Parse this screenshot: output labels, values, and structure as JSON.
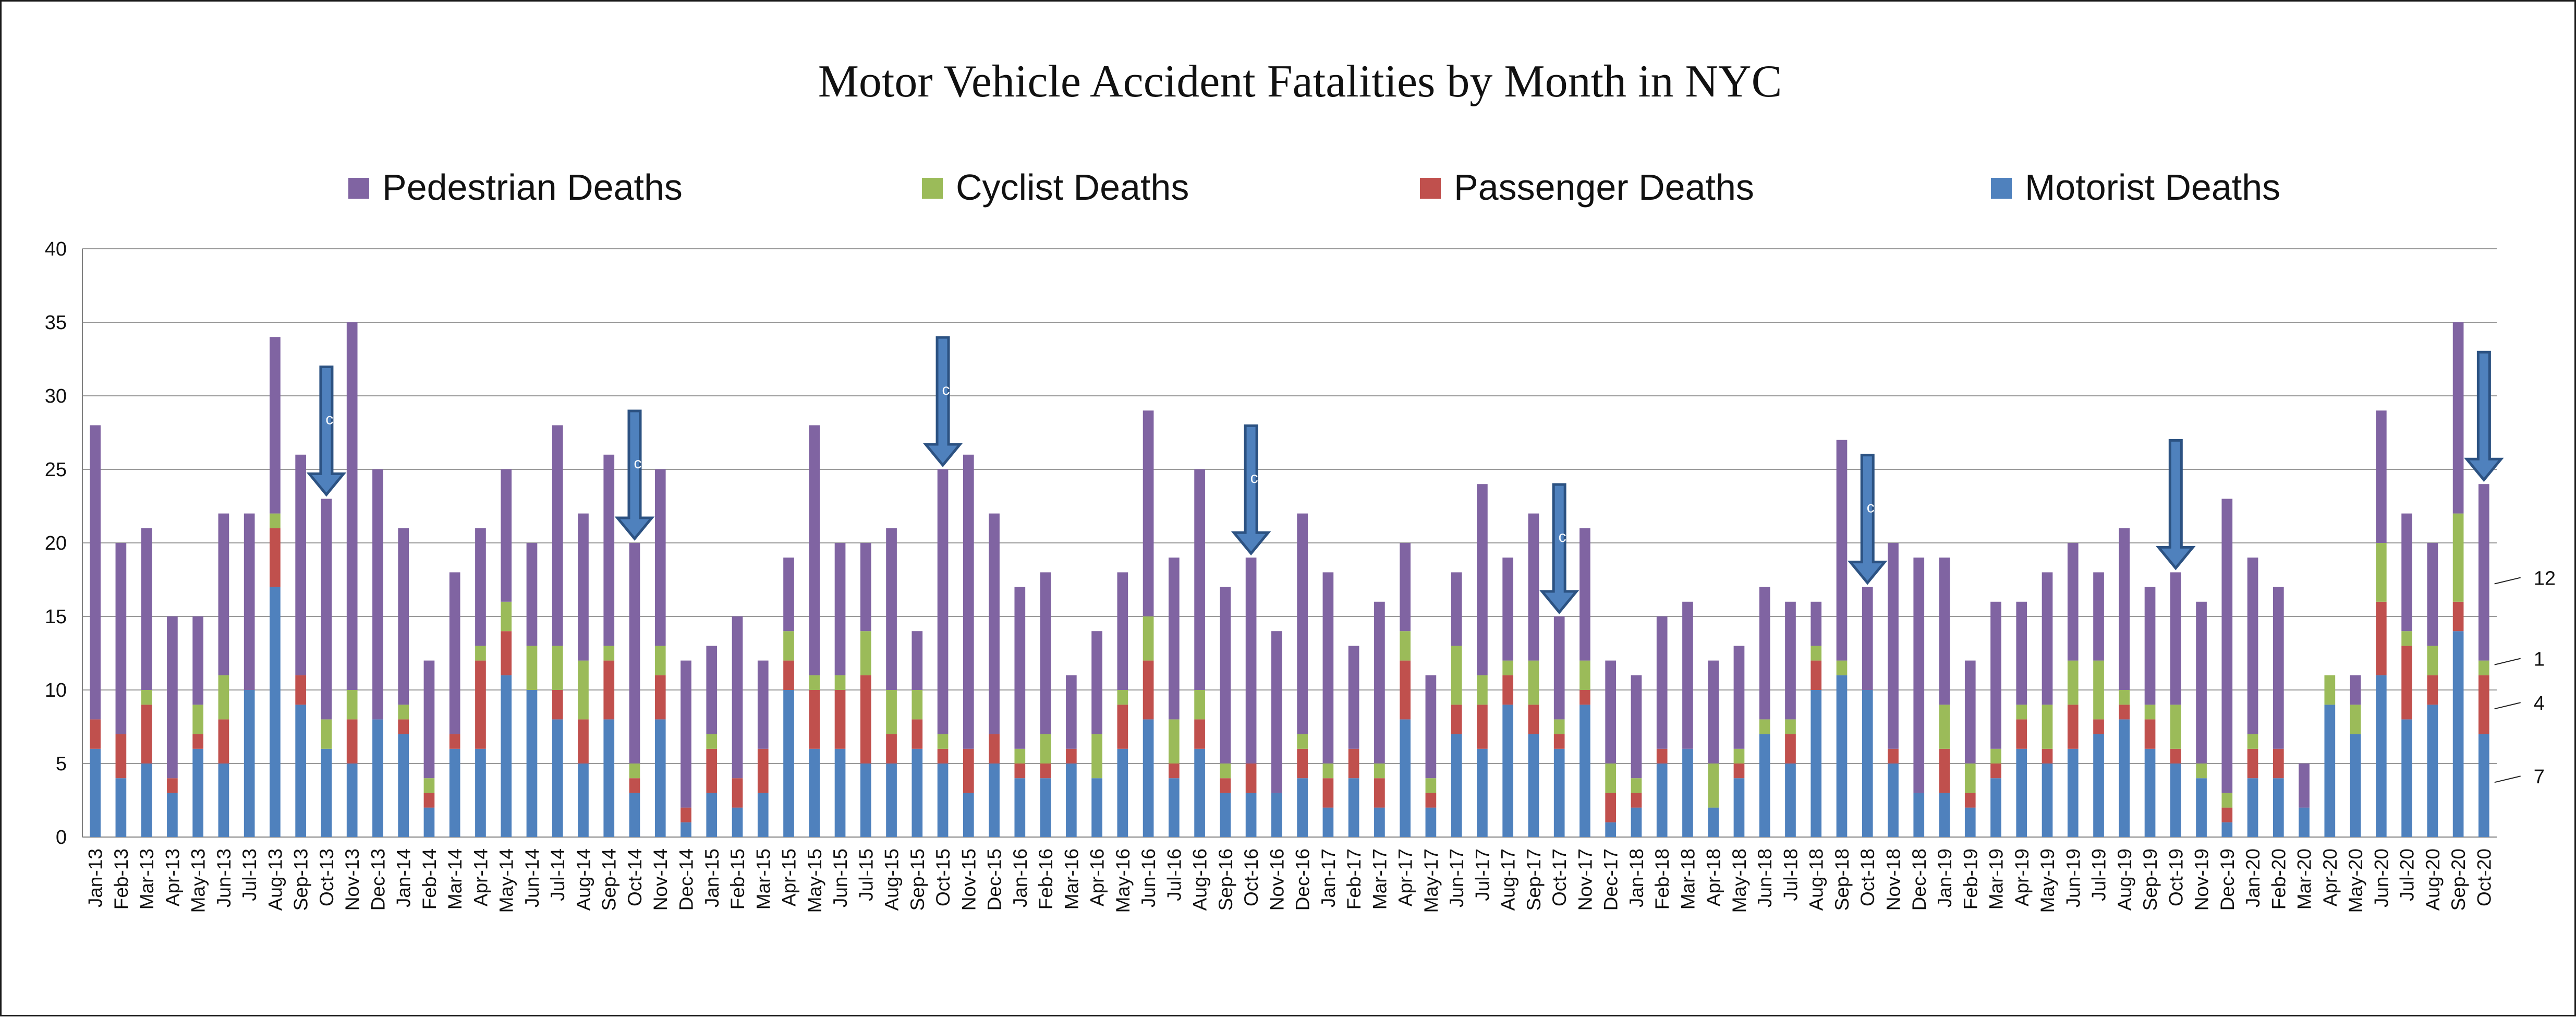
{
  "chart_data": {
    "type": "bar",
    "stacked": true,
    "title": "Motor Vehicle Accident Fatalities by Month in NYC",
    "legend_position": "top",
    "grid": true,
    "ylim": [
      0,
      40
    ],
    "yticks": [
      0,
      5,
      10,
      15,
      20,
      25,
      30,
      35,
      40
    ],
    "categories": [
      "Jan-13",
      "Feb-13",
      "Mar-13",
      "Apr-13",
      "May-13",
      "Jun-13",
      "Jul-13",
      "Aug-13",
      "Sep-13",
      "Oct-13",
      "Nov-13",
      "Dec-13",
      "Jan-14",
      "Feb-14",
      "Mar-14",
      "Apr-14",
      "May-14",
      "Jun-14",
      "Jul-14",
      "Aug-14",
      "Sep-14",
      "Oct-14",
      "Nov-14",
      "Dec-14",
      "Jan-15",
      "Feb-15",
      "Mar-15",
      "Apr-15",
      "May-15",
      "Jun-15",
      "Jul-15",
      "Aug-15",
      "Sep-15",
      "Oct-15",
      "Nov-15",
      "Dec-15",
      "Jan-16",
      "Feb-16",
      "Mar-16",
      "Apr-16",
      "May-16",
      "Jun-16",
      "Jul-16",
      "Aug-16",
      "Sep-16",
      "Oct-16",
      "Nov-16",
      "Dec-16",
      "Jan-17",
      "Feb-17",
      "Mar-17",
      "Apr-17",
      "May-17",
      "Jun-17",
      "Jul-17",
      "Aug-17",
      "Sep-17",
      "Oct-17",
      "Nov-17",
      "Dec-17",
      "Jan-18",
      "Feb-18",
      "Mar-18",
      "Apr-18",
      "May-18",
      "Jun-18",
      "Jul-18",
      "Aug-18",
      "Sep-18",
      "Oct-18",
      "Nov-18",
      "Dec-18",
      "Jan-19",
      "Feb-19",
      "Mar-19",
      "Apr-19",
      "May-19",
      "Jun-19",
      "Jul-19",
      "Aug-19",
      "Sep-19",
      "Oct-19",
      "Nov-19",
      "Dec-19",
      "Jan-20",
      "Feb-20",
      "Mar-20",
      "Apr-20",
      "May-20",
      "Jun-20",
      "Jul-20",
      "Aug-20",
      "Sep-20",
      "Oct-20"
    ],
    "series": [
      {
        "name": "Motorist Deaths",
        "color": "#4F81BD",
        "values": [
          6,
          4,
          5,
          3,
          6,
          5,
          10,
          17,
          9,
          6,
          5,
          8,
          7,
          2,
          6,
          6,
          11,
          10,
          8,
          5,
          8,
          3,
          8,
          1,
          3,
          2,
          3,
          10,
          6,
          6,
          5,
          5,
          6,
          5,
          3,
          5,
          4,
          4,
          5,
          4,
          6,
          8,
          4,
          6,
          3,
          3,
          3,
          4,
          2,
          4,
          2,
          8,
          2,
          7,
          6,
          9,
          7,
          6,
          9,
          1,
          2,
          5,
          6,
          2,
          4,
          7,
          5,
          10,
          11,
          10,
          5,
          3,
          3,
          2,
          4,
          6,
          5,
          6,
          7,
          8,
          6,
          5,
          4,
          1,
          4,
          4,
          2,
          9,
          7,
          11,
          8,
          9,
          14,
          7
        ]
      },
      {
        "name": "Passenger Deaths",
        "color": "#C0504D",
        "values": [
          2,
          3,
          4,
          1,
          1,
          3,
          0,
          4,
          2,
          0,
          3,
          0,
          1,
          1,
          1,
          6,
          3,
          0,
          2,
          3,
          4,
          1,
          3,
          1,
          3,
          2,
          3,
          2,
          4,
          4,
          6,
          2,
          2,
          1,
          3,
          2,
          1,
          1,
          1,
          0,
          3,
          4,
          1,
          2,
          1,
          2,
          0,
          2,
          2,
          2,
          2,
          4,
          1,
          2,
          3,
          2,
          2,
          1,
          1,
          2,
          1,
          1,
          0,
          0,
          1,
          0,
          2,
          2,
          0,
          0,
          1,
          0,
          3,
          1,
          1,
          2,
          1,
          3,
          1,
          1,
          2,
          1,
          0,
          1,
          2,
          2,
          0,
          0,
          0,
          5,
          5,
          2,
          2,
          4
        ]
      },
      {
        "name": "Cyclist Deaths",
        "color": "#9BBB59",
        "values": [
          0,
          0,
          1,
          0,
          2,
          3,
          0,
          1,
          0,
          2,
          2,
          0,
          1,
          1,
          0,
          1,
          2,
          3,
          3,
          4,
          1,
          1,
          2,
          0,
          1,
          0,
          0,
          2,
          1,
          1,
          3,
          3,
          2,
          1,
          0,
          0,
          1,
          2,
          0,
          3,
          1,
          3,
          3,
          2,
          1,
          0,
          0,
          1,
          1,
          0,
          1,
          2,
          1,
          4,
          2,
          1,
          3,
          1,
          2,
          2,
          1,
          0,
          0,
          3,
          1,
          1,
          1,
          1,
          1,
          0,
          0,
          0,
          3,
          2,
          1,
          1,
          3,
          3,
          4,
          1,
          1,
          3,
          1,
          1,
          1,
          0,
          0,
          2,
          2,
          4,
          1,
          2,
          6,
          1
        ]
      },
      {
        "name": "Pedestrian Deaths",
        "color": "#8064A2",
        "values": [
          20,
          13,
          11,
          11,
          6,
          11,
          12,
          12,
          15,
          15,
          25,
          17,
          12,
          8,
          11,
          8,
          9,
          7,
          15,
          10,
          13,
          15,
          12,
          10,
          6,
          11,
          6,
          5,
          17,
          9,
          6,
          11,
          4,
          18,
          20,
          15,
          11,
          11,
          5,
          7,
          8,
          14,
          11,
          15,
          12,
          14,
          11,
          15,
          13,
          7,
          11,
          6,
          7,
          5,
          13,
          7,
          10,
          7,
          9,
          7,
          7,
          9,
          10,
          7,
          7,
          9,
          8,
          3,
          15,
          7,
          14,
          16,
          10,
          7,
          10,
          7,
          9,
          8,
          6,
          11,
          8,
          9,
          11,
          20,
          12,
          11,
          3,
          0,
          2,
          9,
          8,
          7,
          13,
          12
        ]
      }
    ],
    "arrow_markers": [
      "Oct-13",
      "Oct-14",
      "Oct-15",
      "Oct-16",
      "Oct-17",
      "Oct-18",
      "Oct-19",
      "Oct-20"
    ],
    "arrow_labels": [
      "c",
      "c",
      "c",
      "c",
      "c",
      "c",
      "",
      ""
    ],
    "right_annotations": [
      {
        "label": "12",
        "value": 17.5
      },
      {
        "label": "1",
        "value": 12
      },
      {
        "label": "4",
        "value": 9
      },
      {
        "label": "7",
        "value": 4
      }
    ]
  }
}
